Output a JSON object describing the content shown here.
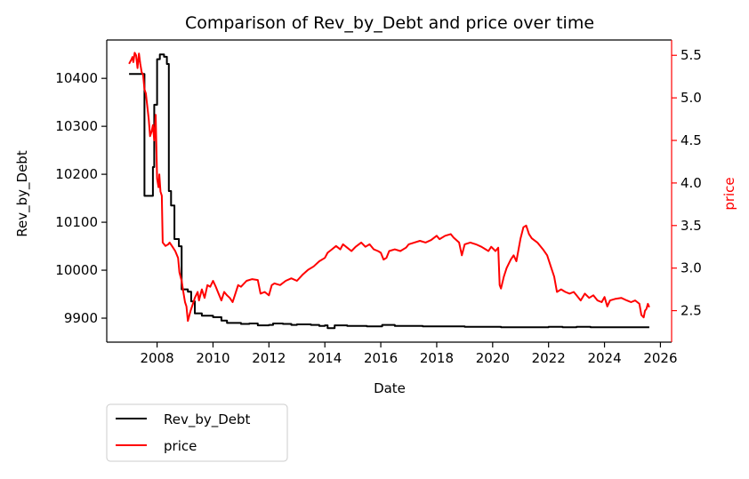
{
  "chart_data": {
    "type": "line",
    "title": "Comparison of Rev_by_Debt and price over time",
    "xlabel": "Date",
    "ylabel": "Rev_by_Debt",
    "ylabel_right": "price",
    "x_range": [
      2006.2,
      2026.4
    ],
    "ylim": [
      9850,
      10480
    ],
    "ylim_right": [
      2.13,
      5.68
    ],
    "x_ticks": [
      2008,
      2010,
      2012,
      2014,
      2016,
      2018,
      2020,
      2022,
      2024,
      2026
    ],
    "y_ticks": [
      9900,
      10000,
      10100,
      10200,
      10300,
      10400
    ],
    "y_ticks_right": [
      2.5,
      3.0,
      3.5,
      4.0,
      4.5,
      5.0,
      5.5
    ],
    "grid": false,
    "legend_position": "below-left",
    "colors": {
      "left_axis": "#000000",
      "right_axis": "#ff0000"
    },
    "series": [
      {
        "name": "Rev_by_Debt",
        "axis": "left",
        "color": "#000000",
        "step": true,
        "points": [
          [
            2007.0,
            10409
          ],
          [
            2007.55,
            10409
          ],
          [
            2007.55,
            10155
          ],
          [
            2007.85,
            10155
          ],
          [
            2007.85,
            10215
          ],
          [
            2007.9,
            10345
          ],
          [
            2008.0,
            10345
          ],
          [
            2008.0,
            10440
          ],
          [
            2008.1,
            10450
          ],
          [
            2008.25,
            10445
          ],
          [
            2008.35,
            10430
          ],
          [
            2008.42,
            10165
          ],
          [
            2008.5,
            10135
          ],
          [
            2008.62,
            10065
          ],
          [
            2008.78,
            10050
          ],
          [
            2008.88,
            9960
          ],
          [
            2009.1,
            9955
          ],
          [
            2009.22,
            9935
          ],
          [
            2009.35,
            9910
          ],
          [
            2009.6,
            9905
          ],
          [
            2010.0,
            9902
          ],
          [
            2010.3,
            9895
          ],
          [
            2010.5,
            9890
          ],
          [
            2011.0,
            9888
          ],
          [
            2011.3,
            9889
          ],
          [
            2011.6,
            9885
          ],
          [
            2012.0,
            9886
          ],
          [
            2012.15,
            9889
          ],
          [
            2012.5,
            9888
          ],
          [
            2012.8,
            9886
          ],
          [
            2013.0,
            9887
          ],
          [
            2013.5,
            9886
          ],
          [
            2013.8,
            9884
          ],
          [
            2014.0,
            9885
          ],
          [
            2014.1,
            9879
          ],
          [
            2014.35,
            9885
          ],
          [
            2014.8,
            9884
          ],
          [
            2015.5,
            9883
          ],
          [
            2016.0,
            9883
          ],
          [
            2016.05,
            9886
          ],
          [
            2016.5,
            9884
          ],
          [
            2017.0,
            9884
          ],
          [
            2017.5,
            9883
          ],
          [
            2018.0,
            9883
          ],
          [
            2018.5,
            9883
          ],
          [
            2019.0,
            9882
          ],
          [
            2019.5,
            9882
          ],
          [
            2020.0,
            9882
          ],
          [
            2020.3,
            9881
          ],
          [
            2021.0,
            9881
          ],
          [
            2022.0,
            9882
          ],
          [
            2022.5,
            9881
          ],
          [
            2023.0,
            9882
          ],
          [
            2023.5,
            9881
          ],
          [
            2024.0,
            9881
          ],
          [
            2025.0,
            9881
          ],
          [
            2025.6,
            9881
          ]
        ]
      },
      {
        "name": "price",
        "axis": "right",
        "color": "#ff0000",
        "step": false,
        "points": [
          [
            2007.0,
            5.4
          ],
          [
            2007.08,
            5.45
          ],
          [
            2007.12,
            5.48
          ],
          [
            2007.15,
            5.42
          ],
          [
            2007.2,
            5.53
          ],
          [
            2007.25,
            5.5
          ],
          [
            2007.3,
            5.35
          ],
          [
            2007.35,
            5.52
          ],
          [
            2007.4,
            5.4
          ],
          [
            2007.45,
            5.3
          ],
          [
            2007.5,
            5.27
          ],
          [
            2007.55,
            5.1
          ],
          [
            2007.6,
            5.05
          ],
          [
            2007.7,
            4.75
          ],
          [
            2007.75,
            4.55
          ],
          [
            2007.8,
            4.6
          ],
          [
            2007.85,
            4.68
          ],
          [
            2007.9,
            4.5
          ],
          [
            2007.95,
            4.8
          ],
          [
            2008.0,
            4.05
          ],
          [
            2008.05,
            3.95
          ],
          [
            2008.08,
            4.1
          ],
          [
            2008.12,
            3.9
          ],
          [
            2008.17,
            3.85
          ],
          [
            2008.2,
            3.3
          ],
          [
            2008.3,
            3.26
          ],
          [
            2008.4,
            3.28
          ],
          [
            2008.45,
            3.3
          ],
          [
            2008.55,
            3.25
          ],
          [
            2008.65,
            3.2
          ],
          [
            2008.75,
            3.12
          ],
          [
            2008.8,
            2.95
          ],
          [
            2008.88,
            2.85
          ],
          [
            2008.95,
            2.7
          ],
          [
            2009.0,
            2.6
          ],
          [
            2009.05,
            2.55
          ],
          [
            2009.1,
            2.38
          ],
          [
            2009.2,
            2.5
          ],
          [
            2009.3,
            2.6
          ],
          [
            2009.35,
            2.65
          ],
          [
            2009.45,
            2.72
          ],
          [
            2009.5,
            2.62
          ],
          [
            2009.6,
            2.75
          ],
          [
            2009.7,
            2.65
          ],
          [
            2009.8,
            2.8
          ],
          [
            2009.9,
            2.78
          ],
          [
            2010.0,
            2.85
          ],
          [
            2010.1,
            2.78
          ],
          [
            2010.2,
            2.7
          ],
          [
            2010.3,
            2.62
          ],
          [
            2010.4,
            2.72
          ],
          [
            2010.5,
            2.68
          ],
          [
            2010.6,
            2.65
          ],
          [
            2010.7,
            2.6
          ],
          [
            2010.8,
            2.7
          ],
          [
            2010.9,
            2.8
          ],
          [
            2011.0,
            2.78
          ],
          [
            2011.2,
            2.85
          ],
          [
            2011.4,
            2.87
          ],
          [
            2011.6,
            2.86
          ],
          [
            2011.7,
            2.7
          ],
          [
            2011.85,
            2.72
          ],
          [
            2012.0,
            2.68
          ],
          [
            2012.1,
            2.8
          ],
          [
            2012.2,
            2.82
          ],
          [
            2012.4,
            2.8
          ],
          [
            2012.6,
            2.85
          ],
          [
            2012.8,
            2.88
          ],
          [
            2013.0,
            2.85
          ],
          [
            2013.2,
            2.92
          ],
          [
            2013.4,
            2.98
          ],
          [
            2013.6,
            3.02
          ],
          [
            2013.8,
            3.08
          ],
          [
            2014.0,
            3.12
          ],
          [
            2014.1,
            3.18
          ],
          [
            2014.25,
            3.22
          ],
          [
            2014.4,
            3.26
          ],
          [
            2014.55,
            3.22
          ],
          [
            2014.65,
            3.28
          ],
          [
            2014.8,
            3.24
          ],
          [
            2014.95,
            3.2
          ],
          [
            2015.1,
            3.25
          ],
          [
            2015.3,
            3.3
          ],
          [
            2015.45,
            3.25
          ],
          [
            2015.6,
            3.28
          ],
          [
            2015.75,
            3.22
          ],
          [
            2015.9,
            3.2
          ],
          [
            2016.0,
            3.18
          ],
          [
            2016.1,
            3.1
          ],
          [
            2016.2,
            3.12
          ],
          [
            2016.3,
            3.2
          ],
          [
            2016.5,
            3.22
          ],
          [
            2016.7,
            3.2
          ],
          [
            2016.9,
            3.24
          ],
          [
            2017.0,
            3.28
          ],
          [
            2017.2,
            3.3
          ],
          [
            2017.4,
            3.32
          ],
          [
            2017.6,
            3.3
          ],
          [
            2017.8,
            3.33
          ],
          [
            2018.0,
            3.38
          ],
          [
            2018.1,
            3.34
          ],
          [
            2018.3,
            3.38
          ],
          [
            2018.5,
            3.4
          ],
          [
            2018.6,
            3.36
          ],
          [
            2018.8,
            3.3
          ],
          [
            2018.9,
            3.15
          ],
          [
            2019.0,
            3.28
          ],
          [
            2019.2,
            3.3
          ],
          [
            2019.4,
            3.28
          ],
          [
            2019.6,
            3.25
          ],
          [
            2019.75,
            3.22
          ],
          [
            2019.85,
            3.2
          ],
          [
            2019.95,
            3.25
          ],
          [
            2020.1,
            3.2
          ],
          [
            2020.2,
            3.24
          ],
          [
            2020.25,
            2.8
          ],
          [
            2020.3,
            2.76
          ],
          [
            2020.4,
            2.9
          ],
          [
            2020.5,
            3.0
          ],
          [
            2020.65,
            3.1
          ],
          [
            2020.75,
            3.15
          ],
          [
            2020.85,
            3.08
          ],
          [
            2021.0,
            3.35
          ],
          [
            2021.1,
            3.48
          ],
          [
            2021.2,
            3.5
          ],
          [
            2021.3,
            3.4
          ],
          [
            2021.4,
            3.35
          ],
          [
            2021.6,
            3.3
          ],
          [
            2021.8,
            3.22
          ],
          [
            2021.95,
            3.15
          ],
          [
            2022.1,
            3.0
          ],
          [
            2022.2,
            2.9
          ],
          [
            2022.3,
            2.72
          ],
          [
            2022.45,
            2.75
          ],
          [
            2022.6,
            2.72
          ],
          [
            2022.75,
            2.7
          ],
          [
            2022.9,
            2.72
          ],
          [
            2023.0,
            2.68
          ],
          [
            2023.15,
            2.62
          ],
          [
            2023.3,
            2.7
          ],
          [
            2023.45,
            2.65
          ],
          [
            2023.6,
            2.68
          ],
          [
            2023.75,
            2.62
          ],
          [
            2023.9,
            2.6
          ],
          [
            2024.0,
            2.66
          ],
          [
            2024.1,
            2.55
          ],
          [
            2024.2,
            2.62
          ],
          [
            2024.4,
            2.64
          ],
          [
            2024.6,
            2.65
          ],
          [
            2024.8,
            2.62
          ],
          [
            2024.95,
            2.6
          ],
          [
            2025.1,
            2.62
          ],
          [
            2025.25,
            2.58
          ],
          [
            2025.32,
            2.45
          ],
          [
            2025.4,
            2.42
          ],
          [
            2025.45,
            2.5
          ],
          [
            2025.5,
            2.52
          ],
          [
            2025.55,
            2.58
          ],
          [
            2025.6,
            2.54
          ]
        ]
      }
    ]
  }
}
